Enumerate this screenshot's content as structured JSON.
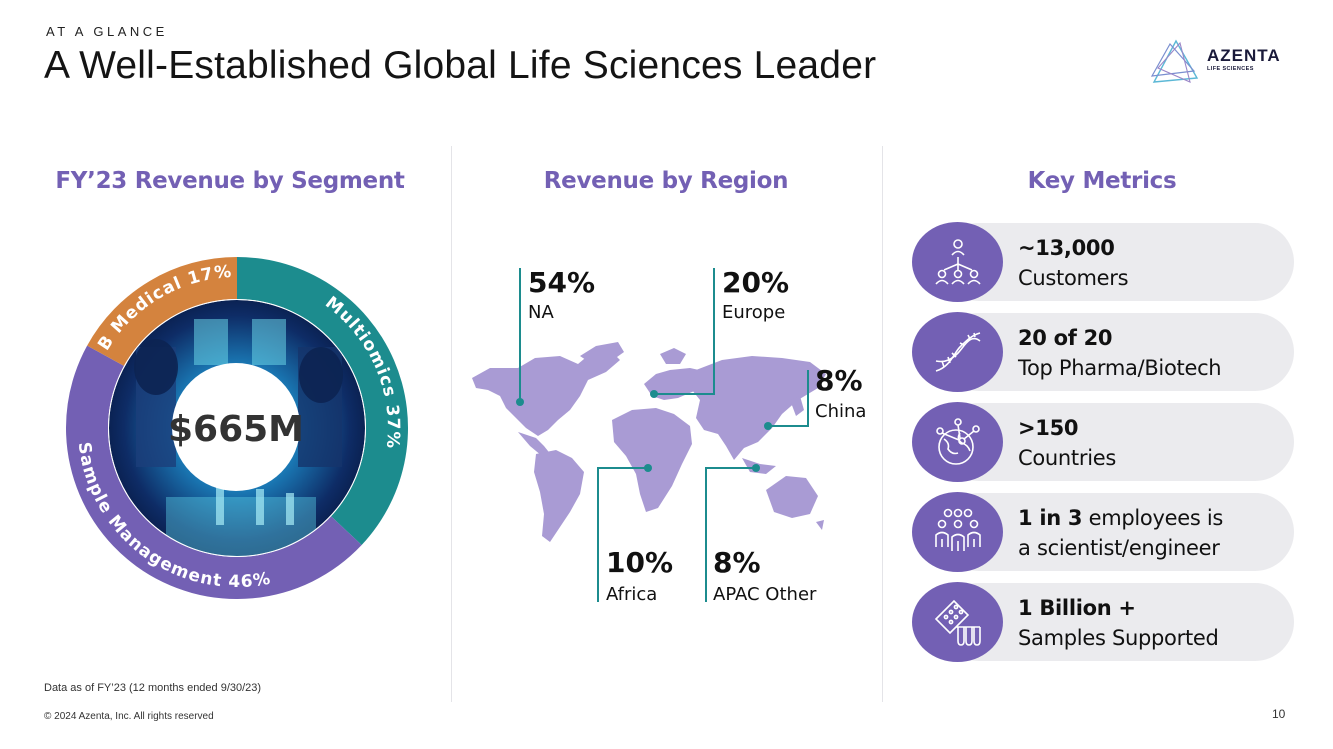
{
  "header": {
    "eyebrow": "AT A GLANCE",
    "title": "A Well-Established Global Life Sciences Leader"
  },
  "logo": {
    "name": "AZENTA",
    "tagline": "LIFE SCIENCES"
  },
  "segment": {
    "heading": "FY’23 Revenue by Segment",
    "total": "$665M",
    "chart_data": {
      "type": "pie",
      "title": "FY’23 Revenue by Segment",
      "categories": [
        "Multiomics",
        "Sample Management",
        "B Medical"
      ],
      "values": [
        37,
        46,
        17
      ],
      "labels": [
        "Multiomics 37%",
        "Sample Management 46%",
        "B Medical 17%"
      ],
      "colors": [
        "#1c8c8e",
        "#7360b4",
        "#d4833e"
      ],
      "center_label": "$665M"
    }
  },
  "region": {
    "heading": "Revenue by Region",
    "callouts": [
      {
        "pct": "54%",
        "name": "NA"
      },
      {
        "pct": "20%",
        "name": "Europe"
      },
      {
        "pct": "8%",
        "name": "China"
      },
      {
        "pct": "10%",
        "name": "Africa"
      },
      {
        "pct": "8%",
        "name": "APAC Other"
      }
    ]
  },
  "metrics": {
    "heading": "Key Metrics",
    "items": [
      {
        "icon": "network-people-icon",
        "line1_bold": "~13,000",
        "line1_rest": "",
        "line2": "Customers"
      },
      {
        "icon": "dna-icon",
        "line1_bold": "20 of 20",
        "line1_rest": "",
        "line2": "Top Pharma/Biotech"
      },
      {
        "icon": "globe-network-icon",
        "line1_bold": ">150",
        "line1_rest": "",
        "line2": "Countries"
      },
      {
        "icon": "team-icon",
        "line1_bold": "1 in 3",
        "line1_rest": " employees is",
        "line2": "a scientist/engineer"
      },
      {
        "icon": "sample-tubes-icon",
        "line1_bold": "1 Billion +",
        "line1_rest": "",
        "line2": "Samples Supported"
      }
    ]
  },
  "footer": {
    "note": "Data as of FY’23 (12 months ended 9/30/23)",
    "copyright": "© 2024 Azenta, Inc.  All rights reserved",
    "page": "10"
  },
  "colors": {
    "accent": "#7360b4",
    "teal": "#1c8c8e",
    "orange": "#d4833e",
    "map": "#a99bd4"
  }
}
